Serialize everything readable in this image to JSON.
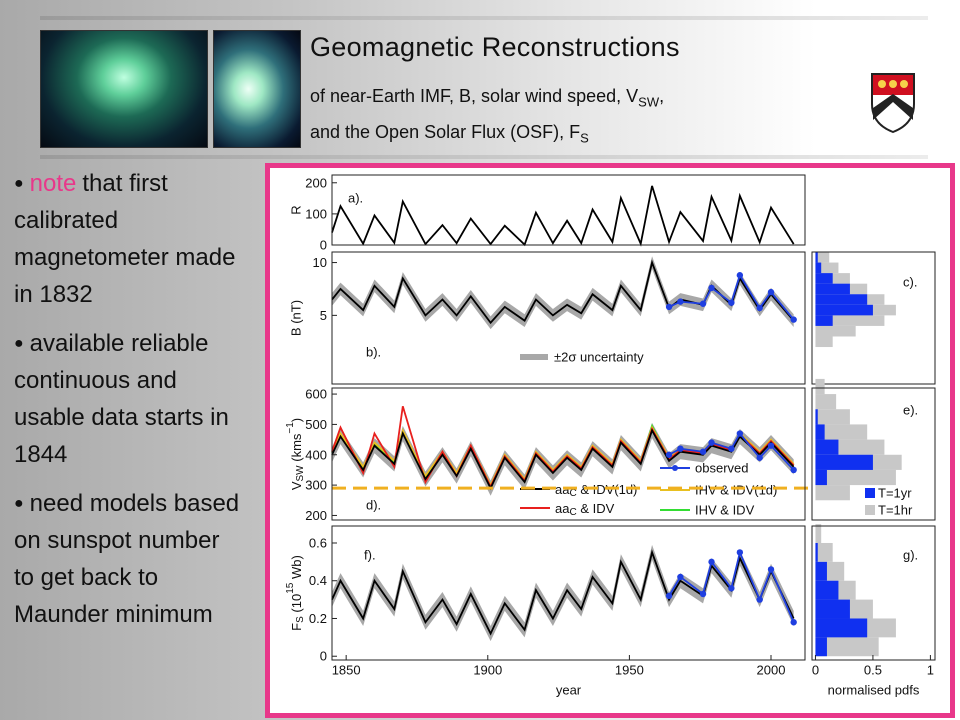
{
  "header": {
    "title": "Geomagnetic Reconstructions",
    "subtitle_lines": [
      [
        {
          "text": "of near-Earth IMF, B, solar wind speed, V"
        },
        {
          "text": "SW",
          "shift": "sub"
        },
        {
          "text": ","
        }
      ],
      [
        {
          "text": "and the Open Solar Flux (OSF), F"
        },
        {
          "text": "S",
          "shift": "sub"
        }
      ]
    ]
  },
  "bullets": [
    {
      "lead": "note",
      "text": "that first calibrated magnetometer made in 1832"
    },
    {
      "text": "available reliable continuous and usable data starts in 1844"
    },
    {
      "text": "need models based on sunspot number to get back to Maunder minimum"
    }
  ],
  "chart_data": [
    {
      "type": "line",
      "ylabel": "R",
      "annotation": "a).",
      "x": [
        1845,
        1848,
        1856,
        1860,
        1867,
        1870,
        1878,
        1884,
        1889,
        1894,
        1901,
        1906,
        1913,
        1917,
        1923,
        1928,
        1933,
        1937,
        1944,
        1947,
        1954,
        1958,
        1964,
        1968,
        1976,
        1979,
        1986,
        1989,
        1996,
        2000,
        2008
      ],
      "xlim": [
        1845,
        2012
      ],
      "ylim": [
        0,
        225
      ],
      "yticks": [
        0,
        100,
        200
      ],
      "series": [
        {
          "color": "#000000",
          "values": [
            40,
            125,
            4,
            95,
            7,
            140,
            3,
            64,
            6,
            85,
            3,
            62,
            1,
            104,
            6,
            78,
            6,
            114,
            10,
            151,
            4,
            190,
            10,
            106,
            13,
            155,
            14,
            158,
            9,
            120,
            3
          ]
        }
      ]
    },
    {
      "type": "line",
      "ylabel": "B (nT)",
      "annotation": "b).",
      "x": [
        1845,
        1848,
        1856,
        1860,
        1867,
        1870,
        1878,
        1884,
        1889,
        1894,
        1901,
        1906,
        1913,
        1917,
        1923,
        1928,
        1933,
        1937,
        1944,
        1947,
        1954,
        1958,
        1964,
        1968,
        1976,
        1979,
        1986,
        1989,
        1996,
        2000,
        2008
      ],
      "xlim": [
        1845,
        2012
      ],
      "ylim": [
        -1.5,
        11
      ],
      "yticks": [
        5,
        10
      ],
      "series": [
        {
          "color": "#000000",
          "error": 0.6,
          "error_name": "±2σ uncertainty",
          "error_color": "#a8a8a8",
          "values": [
            6.5,
            7.5,
            5.5,
            7.8,
            5.8,
            8.5,
            5,
            6.5,
            5,
            6.8,
            4.3,
            5.8,
            4.5,
            6.5,
            5,
            6,
            5.2,
            7,
            5.5,
            7.8,
            5.5,
            10,
            5.7,
            6.5,
            6,
            7.8,
            6,
            8.5,
            5.5,
            7,
            4.5
          ]
        },
        {
          "color": "#1f3fe0",
          "marker": true,
          "values": [
            null,
            null,
            null,
            null,
            null,
            null,
            null,
            null,
            null,
            null,
            null,
            null,
            null,
            null,
            null,
            null,
            null,
            null,
            null,
            null,
            null,
            null,
            5.8,
            6.3,
            6.1,
            7.6,
            6.2,
            8.8,
            5.7,
            7.2,
            4.6
          ]
        }
      ]
    },
    {
      "type": "histogram",
      "annotation": "c).",
      "bins": [
        2,
        3,
        4,
        5,
        6,
        7,
        8,
        9,
        10,
        11
      ],
      "xlim": [
        -0.03,
        1.04
      ],
      "ylim": [
        -1.5,
        11
      ],
      "series": [
        {
          "color": "#c8c8c8",
          "values": [
            0.15,
            0.35,
            0.6,
            0.7,
            0.6,
            0.45,
            0.3,
            0.2,
            0.12
          ]
        },
        {
          "color": "#1030f0",
          "values": [
            0,
            0,
            0.15,
            0.5,
            0.45,
            0.3,
            0.15,
            0.05,
            0.02
          ]
        }
      ]
    },
    {
      "type": "line",
      "annotation": "d).",
      "ylabel": [
        {
          "text": "V"
        },
        {
          "text": "SW",
          "shift": "sub"
        },
        {
          "text": " (kms"
        },
        {
          "text": "−1",
          "shift": "super"
        },
        {
          "text": ")"
        }
      ],
      "x": [
        1845,
        1848,
        1856,
        1860,
        1867,
        1870,
        1878,
        1884,
        1889,
        1894,
        1901,
        1906,
        1913,
        1917,
        1923,
        1928,
        1933,
        1937,
        1944,
        1947,
        1954,
        1958,
        1964,
        1968,
        1976,
        1979,
        1986,
        1989,
        1996,
        2000,
        2008
      ],
      "xlim": [
        1845,
        2012
      ],
      "ylim": [
        185,
        620
      ],
      "yticks": [
        200,
        300,
        400,
        500,
        600
      ],
      "reference_line": {
        "value": 290,
        "color": "#f0b020"
      },
      "series": [
        {
          "name": [
            {
              "text": "aa"
            },
            {
              "text": "C",
              "shift": "sub"
            },
            {
              "text": " & IDV(1d)"
            }
          ],
          "color": "#000000",
          "error": 25,
          "error_color": "#a8a8a8",
          "values": [
            400,
            460,
            350,
            430,
            370,
            470,
            320,
            400,
            330,
            420,
            290,
            390,
            310,
            400,
            340,
            390,
            350,
            420,
            360,
            440,
            370,
            480,
            380,
            410,
            400,
            430,
            410,
            460,
            400,
            440,
            360
          ]
        },
        {
          "name": [
            {
              "text": "aa"
            },
            {
              "text": "C",
              "shift": "sub"
            },
            {
              "text": " & IDV"
            }
          ],
          "color": "#e8201e",
          "values": [
            410,
            490,
            340,
            470,
            360,
            560,
            310,
            410,
            330,
            430,
            295,
            395,
            315,
            405,
            345,
            395,
            355,
            425,
            365,
            445,
            375,
            485,
            385,
            415,
            405,
            435,
            415,
            465,
            405,
            445,
            365
          ]
        },
        {
          "name": "IHV & IDV(1d)",
          "color": "#e8c020",
          "values": [
            410,
            470,
            360,
            440,
            380,
            480,
            330,
            410,
            340,
            430,
            300,
            400,
            320,
            410,
            350,
            400,
            360,
            430,
            370,
            450,
            380,
            490,
            390,
            420,
            410,
            440,
            420,
            470,
            410,
            450,
            370
          ]
        },
        {
          "name": "IHV & IDV",
          "color": "#33dd33",
          "values": [
            405,
            465,
            355,
            435,
            375,
            475,
            325,
            405,
            335,
            425,
            295,
            395,
            315,
            405,
            345,
            395,
            355,
            425,
            365,
            445,
            375,
            495,
            385,
            415,
            405,
            435,
            415,
            465,
            405,
            445,
            365
          ]
        },
        {
          "name": "observed",
          "color": "#1f3fe0",
          "marker": true,
          "values": [
            null,
            null,
            null,
            null,
            null,
            null,
            null,
            null,
            null,
            null,
            null,
            null,
            null,
            null,
            null,
            null,
            null,
            null,
            null,
            null,
            null,
            null,
            400,
            420,
            410,
            440,
            420,
            470,
            390,
            430,
            350
          ]
        }
      ]
    },
    {
      "type": "histogram",
      "annotation": "e).",
      "bins": [
        250,
        300,
        350,
        400,
        450,
        500,
        550,
        600,
        650
      ],
      "xlim": [
        -0.03,
        1.04
      ],
      "ylim": [
        185,
        620
      ],
      "series": [
        {
          "name": "T=1hr",
          "color": "#c8c8c8",
          "values": [
            0.3,
            0.7,
            0.75,
            0.6,
            0.45,
            0.3,
            0.18,
            0.08
          ]
        },
        {
          "name": "T=1yr",
          "color": "#1030f0",
          "values": [
            0,
            0.1,
            0.5,
            0.2,
            0.08,
            0.02,
            0,
            0
          ]
        }
      ]
    },
    {
      "type": "line",
      "annotation": "f).",
      "xlabel": "year",
      "ylabel": [
        {
          "text": "F"
        },
        {
          "text": "S",
          "shift": "sub"
        },
        {
          "text": " (10"
        },
        {
          "text": "15",
          "shift": "super"
        },
        {
          "text": " Wb)"
        }
      ],
      "x": [
        1845,
        1848,
        1856,
        1860,
        1867,
        1870,
        1878,
        1884,
        1889,
        1894,
        1901,
        1906,
        1913,
        1917,
        1923,
        1928,
        1933,
        1937,
        1944,
        1947,
        1954,
        1958,
        1964,
        1968,
        1976,
        1979,
        1986,
        1989,
        1996,
        2000,
        2008
      ],
      "xlim": [
        1845,
        2012
      ],
      "xticks": [
        1850,
        1900,
        1950,
        2000
      ],
      "ylim": [
        -0.02,
        0.69
      ],
      "yticks": [
        0,
        0.2,
        0.4,
        0.6
      ],
      "series": [
        {
          "color": "#000000",
          "error": 0.04,
          "error_color": "#a8a8a8",
          "values": [
            0.3,
            0.4,
            0.2,
            0.4,
            0.25,
            0.45,
            0.18,
            0.3,
            0.17,
            0.33,
            0.12,
            0.28,
            0.14,
            0.35,
            0.2,
            0.35,
            0.25,
            0.42,
            0.28,
            0.5,
            0.3,
            0.55,
            0.3,
            0.4,
            0.32,
            0.48,
            0.35,
            0.52,
            0.3,
            0.45,
            0.2
          ]
        },
        {
          "color": "#1f3fe0",
          "marker": true,
          "values": [
            null,
            null,
            null,
            null,
            null,
            null,
            null,
            null,
            null,
            null,
            null,
            null,
            null,
            null,
            null,
            null,
            null,
            null,
            null,
            null,
            null,
            null,
            0.32,
            0.42,
            0.33,
            0.5,
            0.36,
            0.55,
            0.3,
            0.46,
            0.18
          ]
        }
      ]
    },
    {
      "type": "histogram",
      "annotation": "g).",
      "xlabel": "normalised pdfs",
      "bins": [
        0,
        0.1,
        0.2,
        0.3,
        0.4,
        0.5,
        0.6,
        0.7
      ],
      "xlim": [
        -0.03,
        1.04
      ],
      "xticks": [
        0,
        0.5,
        1
      ],
      "ylim": [
        -0.02,
        0.69
      ],
      "series": [
        {
          "color": "#c8c8c8",
          "values": [
            0.55,
            0.7,
            0.5,
            0.35,
            0.25,
            0.15,
            0.05
          ]
        },
        {
          "color": "#1030f0",
          "values": [
            0.1,
            0.45,
            0.3,
            0.2,
            0.1,
            0.02,
            0
          ]
        }
      ]
    }
  ]
}
